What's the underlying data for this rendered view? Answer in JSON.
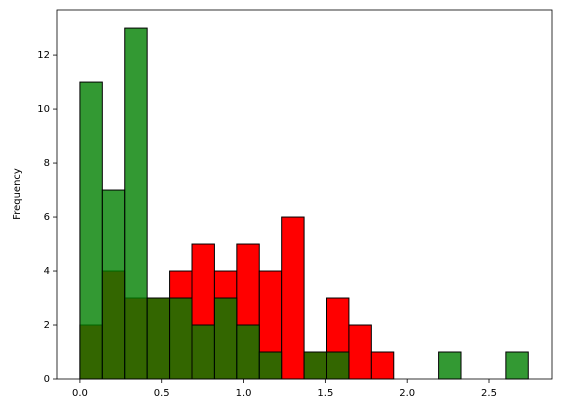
{
  "chart_data": {
    "type": "histogram",
    "ylabel": "Frequency",
    "bins": [
      0,
      0.137,
      0.274,
      0.411,
      0.548,
      0.685,
      0.822,
      0.959,
      1.096,
      1.233,
      1.37,
      1.507,
      1.644,
      1.781,
      1.918,
      2.055,
      2.192,
      2.329,
      2.466,
      2.603,
      2.74
    ],
    "series": [
      {
        "color": "#ff0000",
        "alpha": 1,
        "values": [
          2,
          4,
          3,
          3,
          4,
          5,
          4,
          5,
          4,
          6,
          1,
          3,
          2,
          1,
          0,
          0,
          0,
          0,
          0,
          0
        ]
      },
      {
        "color": "#008000",
        "alpha": 0.8,
        "values": [
          11,
          7,
          13,
          3,
          3,
          2,
          3,
          2,
          1,
          0,
          1,
          1,
          0,
          0,
          0,
          0,
          1,
          0,
          0,
          1
        ]
      }
    ],
    "edgecolor": "#000000",
    "xlim": [
      -0.14,
      2.885
    ],
    "ylim": [
      0,
      13.67
    ],
    "xticks": [
      {
        "value": 0,
        "label": "0.0"
      },
      {
        "value": 0.5,
        "label": "0.5"
      },
      {
        "value": 1,
        "label": "1.0"
      },
      {
        "value": 1.5,
        "label": "1.5"
      },
      {
        "value": 2,
        "label": "2.0"
      },
      {
        "value": 2.5,
        "label": "2.5"
      }
    ],
    "yticks": [
      0,
      2,
      4,
      6,
      8,
      10,
      12
    ]
  }
}
